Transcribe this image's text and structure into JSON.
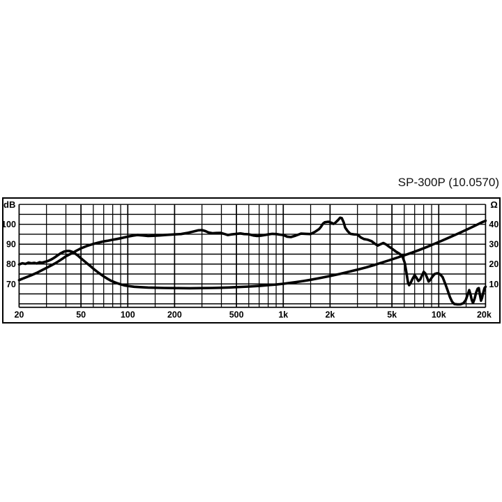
{
  "title": "SP-300P (10.0570)",
  "chart_data": {
    "type": "line",
    "title": "SP-300P (10.0570)",
    "background": "#ffffff",
    "line_color": "#000000",
    "grid_color": "#000000",
    "x_axis": {
      "scale": "log",
      "unit": "Hz",
      "min": 20,
      "max": 20000,
      "major_ticks": [
        {
          "f": 20,
          "label": "20"
        },
        {
          "f": 50,
          "label": "50"
        },
        {
          "f": 100,
          "label": "100"
        },
        {
          "f": 200,
          "label": "200"
        },
        {
          "f": 500,
          "label": "500"
        },
        {
          "f": 1000,
          "label": "1k"
        },
        {
          "f": 2000,
          "label": "2k"
        },
        {
          "f": 5000,
          "label": "5k"
        },
        {
          "f": 10000,
          "label": "10k"
        },
        {
          "f": 20000,
          "label": "20k"
        }
      ],
      "minor_gridlines": [
        30,
        40,
        60,
        70,
        80,
        90,
        150,
        300,
        400,
        600,
        700,
        800,
        900,
        1500,
        3000,
        4000,
        6000,
        7000,
        8000,
        9000,
        15000
      ]
    },
    "y_left": {
      "label": "dB",
      "tick_labels": [
        {
          "db": 100,
          "label": "100"
        },
        {
          "db": 90,
          "label": "90"
        },
        {
          "db": 80,
          "label": "80"
        },
        {
          "db": 70,
          "label": "70"
        }
      ],
      "gridline_values": [
        110,
        105,
        100,
        95,
        90,
        85,
        80,
        75,
        70,
        65,
        60
      ],
      "gridline_step": 5
    },
    "y_right": {
      "label": "Ω",
      "tick_labels": [
        {
          "ohm": 40,
          "label": "40"
        },
        {
          "ohm": 30,
          "label": "30"
        },
        {
          "ohm": 20,
          "label": "20"
        },
        {
          "ohm": 10,
          "label": "10"
        }
      ],
      "alignment": "10 ohm line = 70 dB line, linear 10 ohm per 10 dB division"
    },
    "series": [
      {
        "name": "frequency-response-spl",
        "axis": "left",
        "unit": "dB",
        "points": [
          [
            20,
            71.9
          ],
          [
            21,
            72.6
          ],
          [
            22,
            73.2
          ],
          [
            24,
            74.4
          ],
          [
            26,
            75.6
          ],
          [
            28,
            76.9
          ],
          [
            30,
            78.1
          ],
          [
            32,
            79.2
          ],
          [
            34,
            80.3
          ],
          [
            36,
            81.5
          ],
          [
            38,
            82.7
          ],
          [
            40,
            83.9
          ],
          [
            42,
            84.8
          ],
          [
            44,
            85.6
          ],
          [
            47,
            86.8
          ],
          [
            50,
            87.9
          ],
          [
            55,
            89.2
          ],
          [
            60,
            90.1
          ],
          [
            65,
            90.8
          ],
          [
            70,
            91.4
          ],
          [
            75,
            91.8
          ],
          [
            80,
            92.2
          ],
          [
            85,
            92.6
          ],
          [
            90,
            93.0
          ],
          [
            95,
            93.4
          ],
          [
            100,
            93.8
          ],
          [
            108,
            94.3
          ],
          [
            115,
            94.6
          ],
          [
            125,
            94.4
          ],
          [
            135,
            94.1
          ],
          [
            145,
            94.2
          ],
          [
            160,
            94.4
          ],
          [
            180,
            94.7
          ],
          [
            200,
            94.9
          ],
          [
            220,
            95.1
          ],
          [
            240,
            95.6
          ],
          [
            265,
            96.4
          ],
          [
            285,
            97.0
          ],
          [
            300,
            97.1
          ],
          [
            315,
            96.6
          ],
          [
            330,
            95.9
          ],
          [
            350,
            95.5
          ],
          [
            370,
            95.6
          ],
          [
            395,
            95.7
          ],
          [
            420,
            95.1
          ],
          [
            440,
            94.6
          ],
          [
            465,
            94.9
          ],
          [
            500,
            95.2
          ],
          [
            530,
            95.4
          ],
          [
            560,
            95.1
          ],
          [
            600,
            95.0
          ],
          [
            640,
            94.4
          ],
          [
            680,
            94.1
          ],
          [
            720,
            94.3
          ],
          [
            760,
            94.6
          ],
          [
            800,
            94.9
          ],
          [
            850,
            95.2
          ],
          [
            900,
            95.1
          ],
          [
            950,
            94.8
          ],
          [
            1000,
            94.6
          ],
          [
            1060,
            93.8
          ],
          [
            1120,
            93.6
          ],
          [
            1200,
            94.3
          ],
          [
            1300,
            95.3
          ],
          [
            1400,
            95.2
          ],
          [
            1500,
            95.1
          ],
          [
            1600,
            96.2
          ],
          [
            1700,
            97.6
          ],
          [
            1750,
            98.8
          ],
          [
            1800,
            100.3
          ],
          [
            1850,
            101.0
          ],
          [
            1950,
            101.3
          ],
          [
            2050,
            100.7
          ],
          [
            2100,
            100.2
          ],
          [
            2150,
            100.6
          ],
          [
            2250,
            102.1
          ],
          [
            2320,
            103.3
          ],
          [
            2380,
            103.1
          ],
          [
            2450,
            100.8
          ],
          [
            2500,
            98.4
          ],
          [
            2600,
            96.5
          ],
          [
            2700,
            95.2
          ],
          [
            2850,
            94.9
          ],
          [
            3000,
            94.8
          ],
          [
            3150,
            93.4
          ],
          [
            3300,
            92.6
          ],
          [
            3500,
            92.2
          ],
          [
            3700,
            91.5
          ],
          [
            3900,
            90.1
          ],
          [
            4050,
            89.3
          ],
          [
            4200,
            89.9
          ],
          [
            4400,
            90.6
          ],
          [
            4600,
            89.8
          ],
          [
            4800,
            88.7
          ],
          [
            5000,
            87.8
          ],
          [
            5300,
            86.3
          ],
          [
            5600,
            85.2
          ],
          [
            5850,
            83.8
          ],
          [
            6050,
            80.5
          ],
          [
            6200,
            75.5
          ],
          [
            6350,
            70.5
          ],
          [
            6450,
            69.4
          ],
          [
            6600,
            70.6
          ],
          [
            6800,
            72.7
          ],
          [
            7000,
            74.4
          ],
          [
            7200,
            73.0
          ],
          [
            7400,
            71.5
          ],
          [
            7600,
            72.3
          ],
          [
            7800,
            74.2
          ],
          [
            8000,
            76.1
          ],
          [
            8200,
            75.2
          ],
          [
            8450,
            72.8
          ],
          [
            8600,
            71.2
          ],
          [
            8800,
            72.0
          ],
          [
            9100,
            73.6
          ],
          [
            9400,
            75.0
          ],
          [
            9800,
            75.4
          ],
          [
            10200,
            74.9
          ],
          [
            10600,
            73.4
          ],
          [
            11000,
            70.2
          ],
          [
            11400,
            66.8
          ],
          [
            11800,
            63.4
          ],
          [
            12200,
            61.0
          ],
          [
            12600,
            59.9
          ],
          [
            13200,
            59.7
          ],
          [
            13800,
            59.8
          ],
          [
            14400,
            60.3
          ],
          [
            14900,
            61.8
          ],
          [
            15400,
            65.0
          ],
          [
            15700,
            66.9
          ],
          [
            16000,
            64.8
          ],
          [
            16300,
            62.0
          ],
          [
            16600,
            60.4
          ],
          [
            17000,
            62.6
          ],
          [
            17400,
            65.7
          ],
          [
            17800,
            67.6
          ],
          [
            18100,
            67.9
          ],
          [
            18400,
            64.6
          ],
          [
            18700,
            61.6
          ],
          [
            19000,
            63.0
          ],
          [
            19400,
            66.2
          ],
          [
            19700,
            67.9
          ],
          [
            20000,
            68.6
          ]
        ]
      },
      {
        "name": "impedance",
        "axis": "right",
        "unit": "ohm",
        "points": [
          [
            20,
            19.8
          ],
          [
            21,
            20.4
          ],
          [
            22,
            20.1
          ],
          [
            23,
            20.7
          ],
          [
            24,
            20.4
          ],
          [
            25,
            20.6
          ],
          [
            26,
            20.3
          ],
          [
            27,
            20.9
          ],
          [
            28,
            20.7
          ],
          [
            29,
            21.0
          ],
          [
            30,
            21.3
          ],
          [
            31,
            21.7
          ],
          [
            32,
            22.2
          ],
          [
            33,
            22.8
          ],
          [
            34,
            23.4
          ],
          [
            35,
            24.1
          ],
          [
            36,
            24.8
          ],
          [
            37,
            25.4
          ],
          [
            38,
            25.9
          ],
          [
            39,
            26.3
          ],
          [
            40,
            26.5
          ],
          [
            41,
            26.6
          ],
          [
            42,
            26.6
          ],
          [
            43,
            26.4
          ],
          [
            44,
            26.1
          ],
          [
            45,
            25.7
          ],
          [
            46,
            25.2
          ],
          [
            48,
            24.1
          ],
          [
            50,
            22.9
          ],
          [
            52,
            21.8
          ],
          [
            55,
            20.2
          ],
          [
            58,
            18.7
          ],
          [
            60,
            17.7
          ],
          [
            63,
            16.4
          ],
          [
            66,
            15.2
          ],
          [
            70,
            13.8
          ],
          [
            74,
            12.6
          ],
          [
            78,
            11.6
          ],
          [
            82,
            10.9
          ],
          [
            86,
            10.3
          ],
          [
            90,
            9.8
          ],
          [
            95,
            9.3
          ],
          [
            100,
            9.0
          ],
          [
            110,
            8.6
          ],
          [
            120,
            8.4
          ],
          [
            135,
            8.2
          ],
          [
            150,
            8.1
          ],
          [
            170,
            8.0
          ],
          [
            200,
            7.9
          ],
          [
            250,
            7.85
          ],
          [
            300,
            7.9
          ],
          [
            350,
            8.0
          ],
          [
            400,
            8.1
          ],
          [
            450,
            8.25
          ],
          [
            500,
            8.4
          ],
          [
            600,
            8.7
          ],
          [
            700,
            9.0
          ],
          [
            800,
            9.4
          ],
          [
            900,
            9.7
          ],
          [
            1000,
            10.1
          ],
          [
            1100,
            10.5
          ],
          [
            1200,
            10.9
          ],
          [
            1350,
            11.5
          ],
          [
            1500,
            12.1
          ],
          [
            1700,
            12.9
          ],
          [
            2000,
            14.0
          ],
          [
            2300,
            15.0
          ],
          [
            2600,
            16.0
          ],
          [
            3000,
            17.2
          ],
          [
            3400,
            18.3
          ],
          [
            3800,
            19.4
          ],
          [
            4300,
            20.7
          ],
          [
            4800,
            21.9
          ],
          [
            5400,
            23.2
          ],
          [
            6000,
            24.4
          ],
          [
            6700,
            25.7
          ],
          [
            7500,
            27.1
          ],
          [
            8400,
            28.6
          ],
          [
            9400,
            30.2
          ],
          [
            10500,
            31.8
          ],
          [
            11800,
            33.5
          ],
          [
            13200,
            35.2
          ],
          [
            15000,
            37.2
          ],
          [
            17000,
            39.2
          ],
          [
            19000,
            41.0
          ],
          [
            20000,
            41.8
          ]
        ]
      }
    ]
  }
}
